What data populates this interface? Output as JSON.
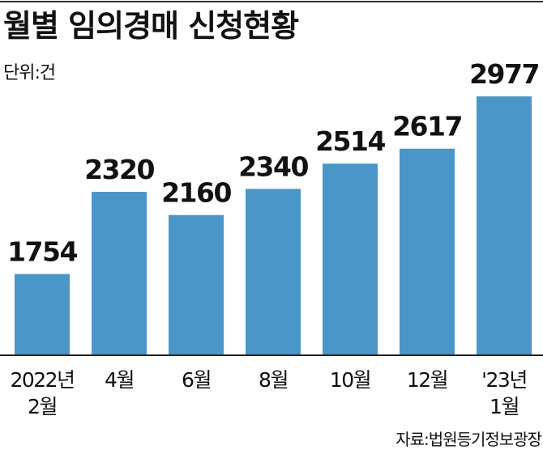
{
  "title": "월별 임의경매 신청현황",
  "unit": "단위:건",
  "source": "자료:법원등기정보광장",
  "colors": {
    "bar": "#4a96c9",
    "baseline": "#222222",
    "text": "#111111"
  },
  "chart_data": {
    "type": "bar",
    "title": "월별 임의경매 신청현황",
    "ylabel": "단위:건",
    "xlabel": "",
    "categories": [
      [
        "2022년",
        "2월"
      ],
      [
        "4월"
      ],
      [
        "6월"
      ],
      [
        "8월"
      ],
      [
        "10월"
      ],
      [
        "12월"
      ],
      [
        "'23년",
        "1월"
      ]
    ],
    "values": [
      1754,
      2320,
      2160,
      2340,
      2514,
      2617,
      2977
    ],
    "ylim": [
      1200,
      3000
    ],
    "grid": false,
    "legend": "none"
  }
}
